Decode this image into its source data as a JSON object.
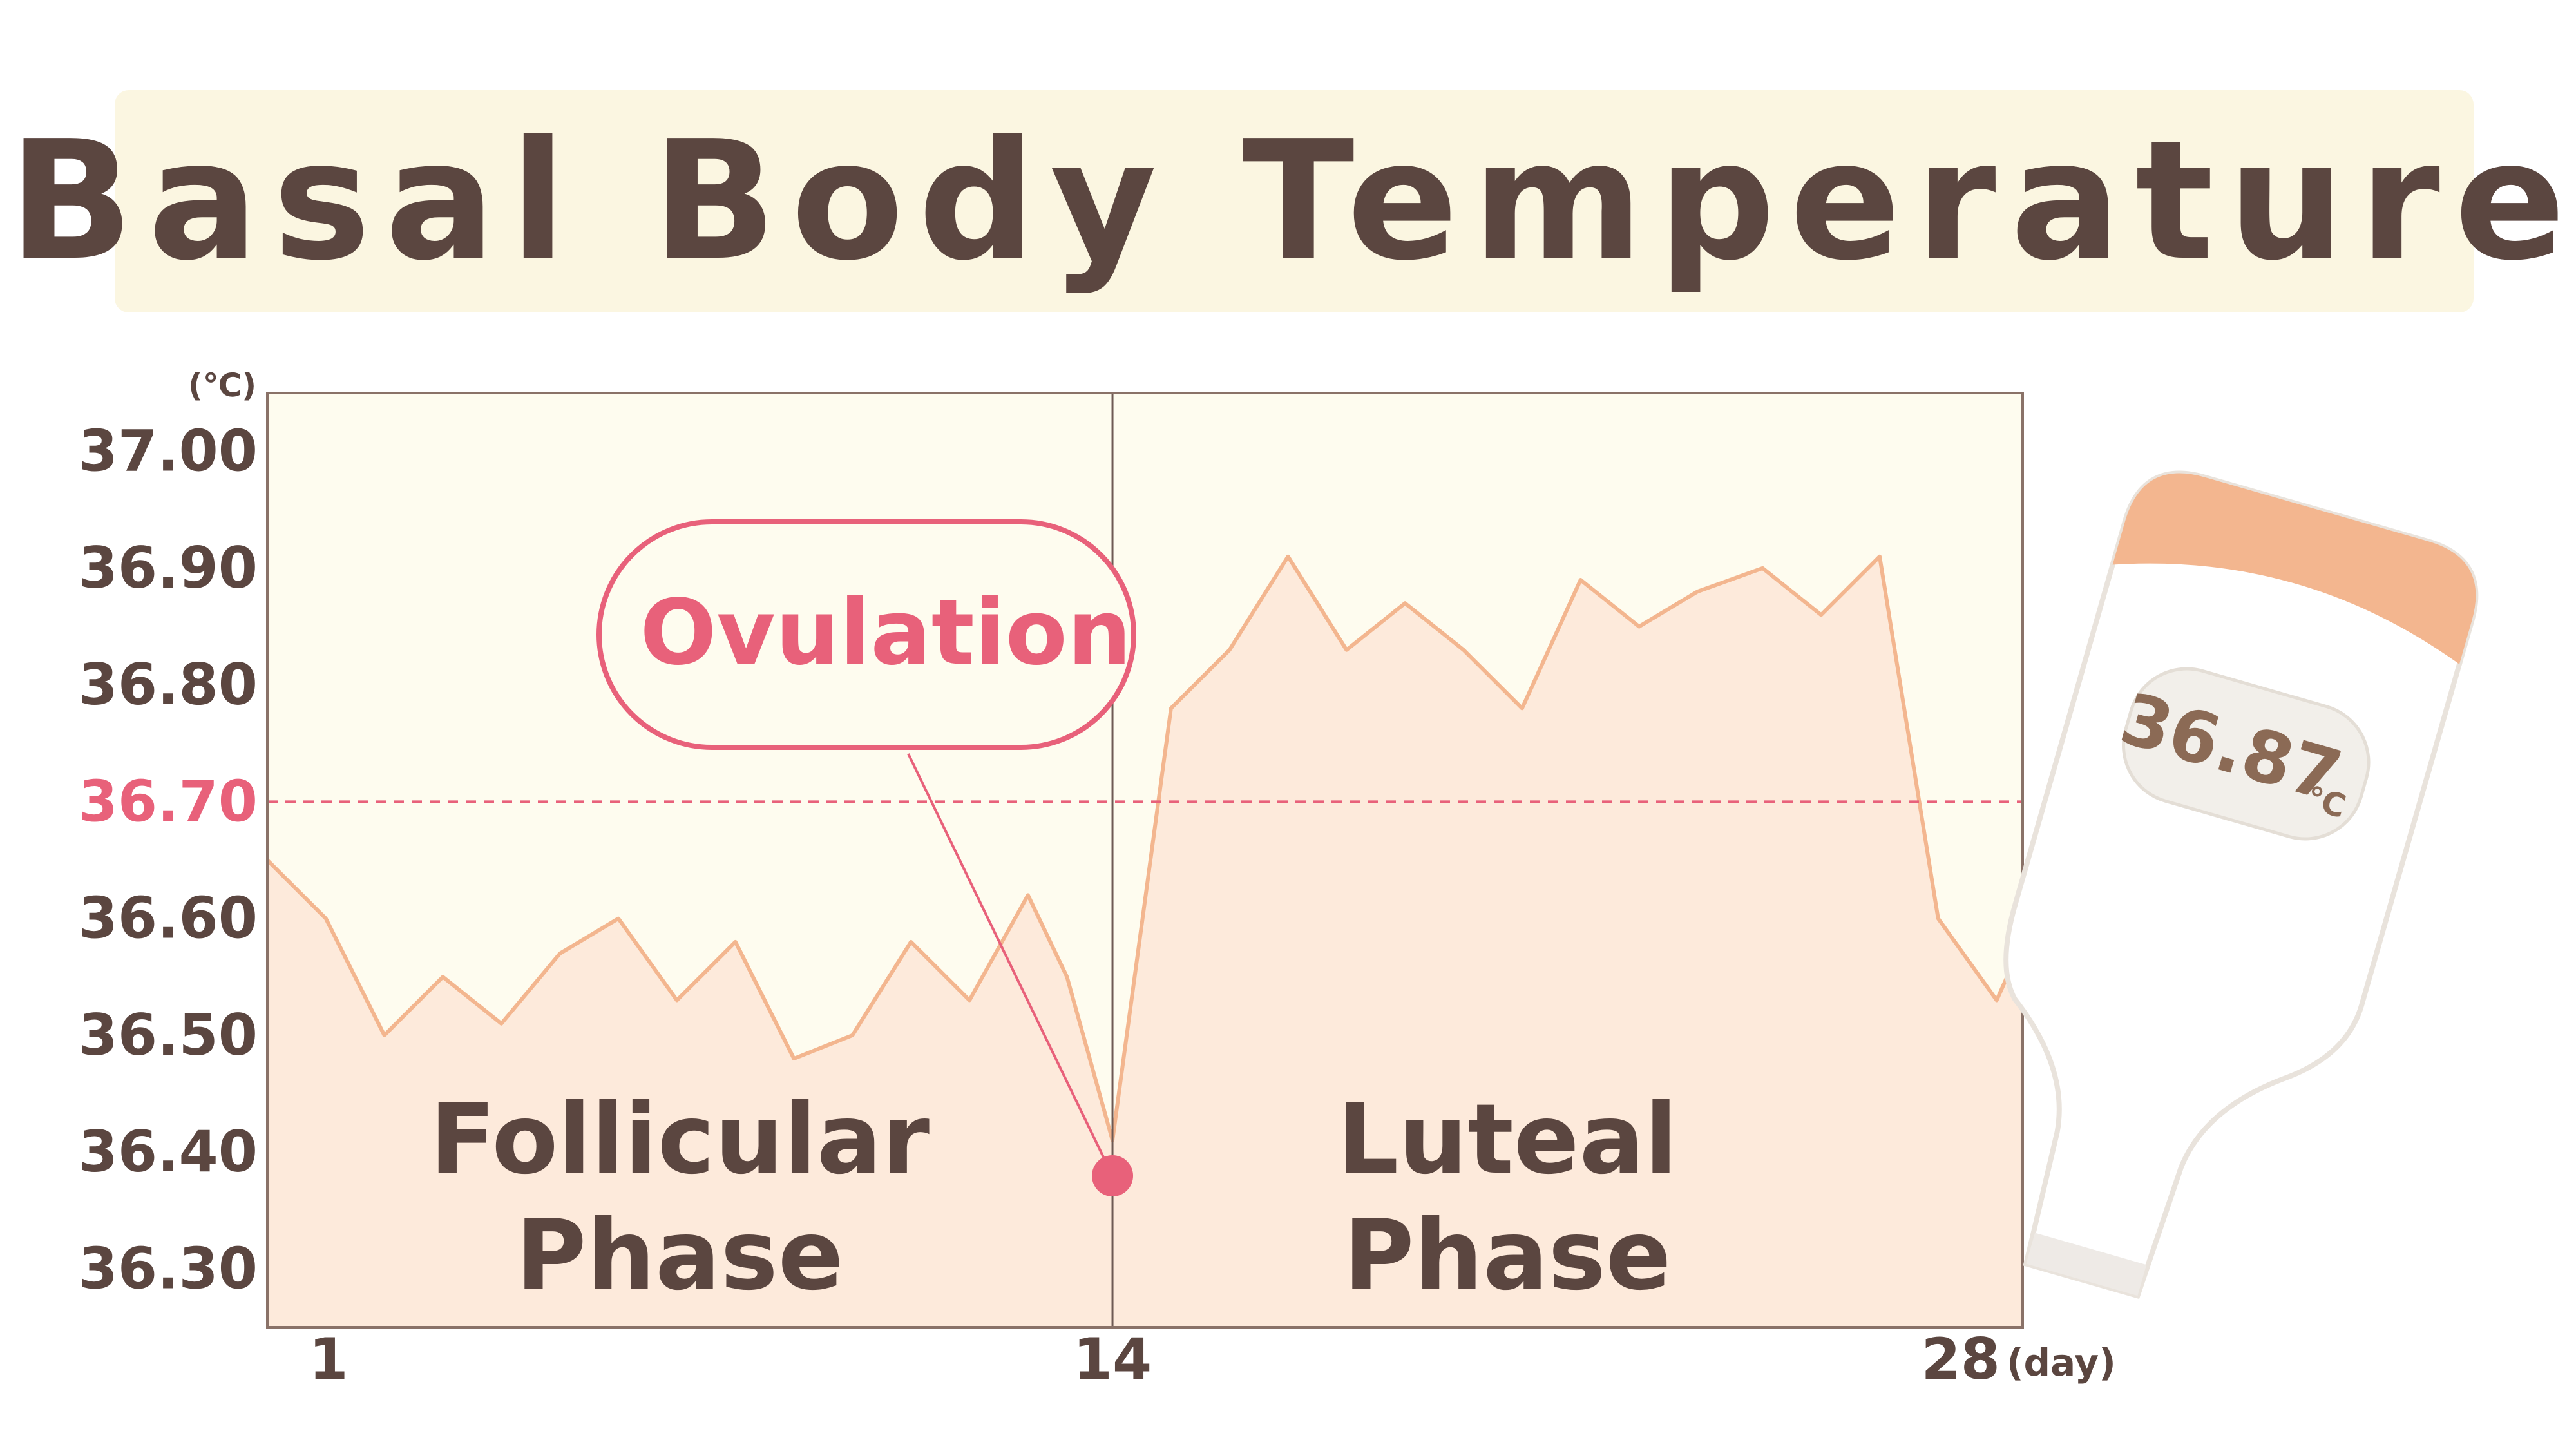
{
  "title": "Basal Body Temperature",
  "chart_data": {
    "type": "area",
    "title": "Basal Body Temperature",
    "y_unit": "(℃)",
    "x_unit": "(day)",
    "ylim": [
      36.25,
      37.05
    ],
    "xlim": [
      1,
      28
    ],
    "yticks": [
      "37.00",
      "36.90",
      "36.80",
      "36.70",
      "36.60",
      "36.50",
      "36.40",
      "36.30"
    ],
    "xticks": [
      {
        "value": 1,
        "label": "1"
      },
      {
        "value": 14,
        "label": "14"
      },
      {
        "value": 28,
        "label": "28"
      }
    ],
    "threshold": {
      "value": 36.7,
      "label": "36.70",
      "style": "dashed",
      "color": "#e8617a"
    },
    "ovulation_day": 14,
    "series": [
      {
        "x": [
          1,
          1.9,
          2.8,
          3.7,
          4.6,
          5.5,
          6.4,
          7.3,
          8.2,
          9.1,
          10.0,
          10.9,
          11.8,
          12.7,
          13.3,
          14.0,
          14.9,
          15.8,
          16.7,
          17.6,
          18.5,
          19.4,
          20.3,
          21.2,
          22.1,
          23.0,
          24.0,
          24.9,
          25.8,
          26.7,
          27.6,
          28.0
        ],
        "y": [
          36.65,
          36.6,
          36.5,
          36.55,
          36.51,
          36.57,
          36.6,
          36.53,
          36.58,
          36.48,
          36.5,
          36.58,
          36.53,
          36.62,
          36.55,
          36.41,
          36.78,
          36.83,
          36.91,
          36.83,
          36.87,
          36.83,
          36.78,
          36.89,
          36.85,
          36.88,
          36.9,
          36.86,
          36.91,
          36.6,
          36.53,
          36.58
        ],
        "color": "#f3b68f",
        "fill": "#fdeadb"
      }
    ],
    "annotations": [
      {
        "text": "Ovulation",
        "x": 14,
        "y": 36.41,
        "color": "#e8617a"
      },
      {
        "text": "Follicular Phase",
        "region": "days 1–14"
      },
      {
        "text": "Luteal Phase",
        "region": "days 14–28"
      }
    ],
    "colors": {
      "text": "#5b4640",
      "accent": "#e8617a",
      "plot_bg": "#fefcef",
      "line": "#f3b68f",
      "area": "#fdeadb",
      "axis": "#8a7268"
    }
  },
  "labels": {
    "ovulation": "Ovulation",
    "follicular_line1": "Follicular",
    "follicular_line2": "Phase",
    "luteal_line1": "Luteal",
    "luteal_line2": "Phase"
  },
  "thermometer": {
    "reading": "36.87",
    "unit": "℃",
    "icon": "thermometer-icon"
  }
}
